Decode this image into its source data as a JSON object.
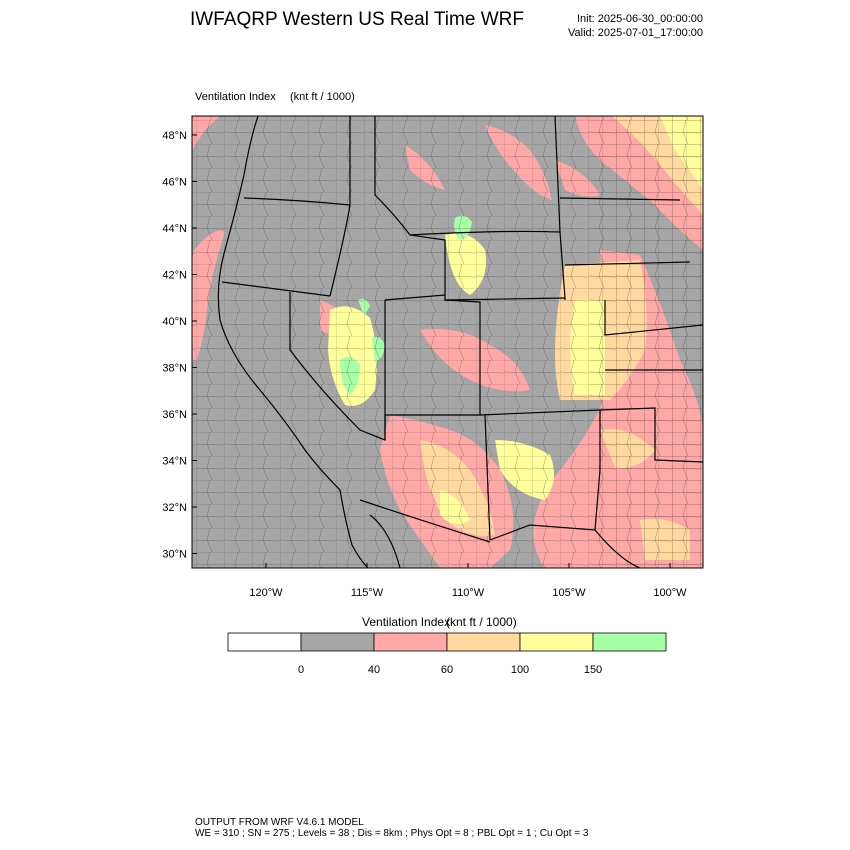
{
  "header": {
    "title": "IWFAQRP Western US Real Time WRF",
    "init": "Init: 2025-06-30_00:00:00",
    "valid": "Valid: 2025-07-01_17:00:00"
  },
  "plot": {
    "title": "Ventilation Index",
    "unit": "(knt ft / 1000)"
  },
  "axes": {
    "lat_labels": [
      "48°N",
      "46°N",
      "44°N",
      "42°N",
      "40°N",
      "38°N",
      "36°N",
      "34°N",
      "32°N",
      "30°N"
    ],
    "lon_labels": [
      "120°W",
      "115°W",
      "110°W",
      "105°W",
      "100°W"
    ]
  },
  "colorbar": {
    "title": "Ventilation Index",
    "unit": "(knt ft / 1000)",
    "labels": [
      "0",
      "40",
      "60",
      "100",
      "150"
    ],
    "colors": [
      "#ffffff",
      "#a6a6a6",
      "#ffa8a8",
      "#ffd9a0",
      "#ffff9c",
      "#a6ffa6"
    ]
  },
  "footer": {
    "line1": "OUTPUT FROM WRF V4.6.1 MODEL",
    "line2": "WE = 310 ; SN = 275 ; Levels = 38 ; Dis = 8km ; Phys Opt = 8 ; PBL Opt = 1 ; Cu Opt = 3"
  }
}
